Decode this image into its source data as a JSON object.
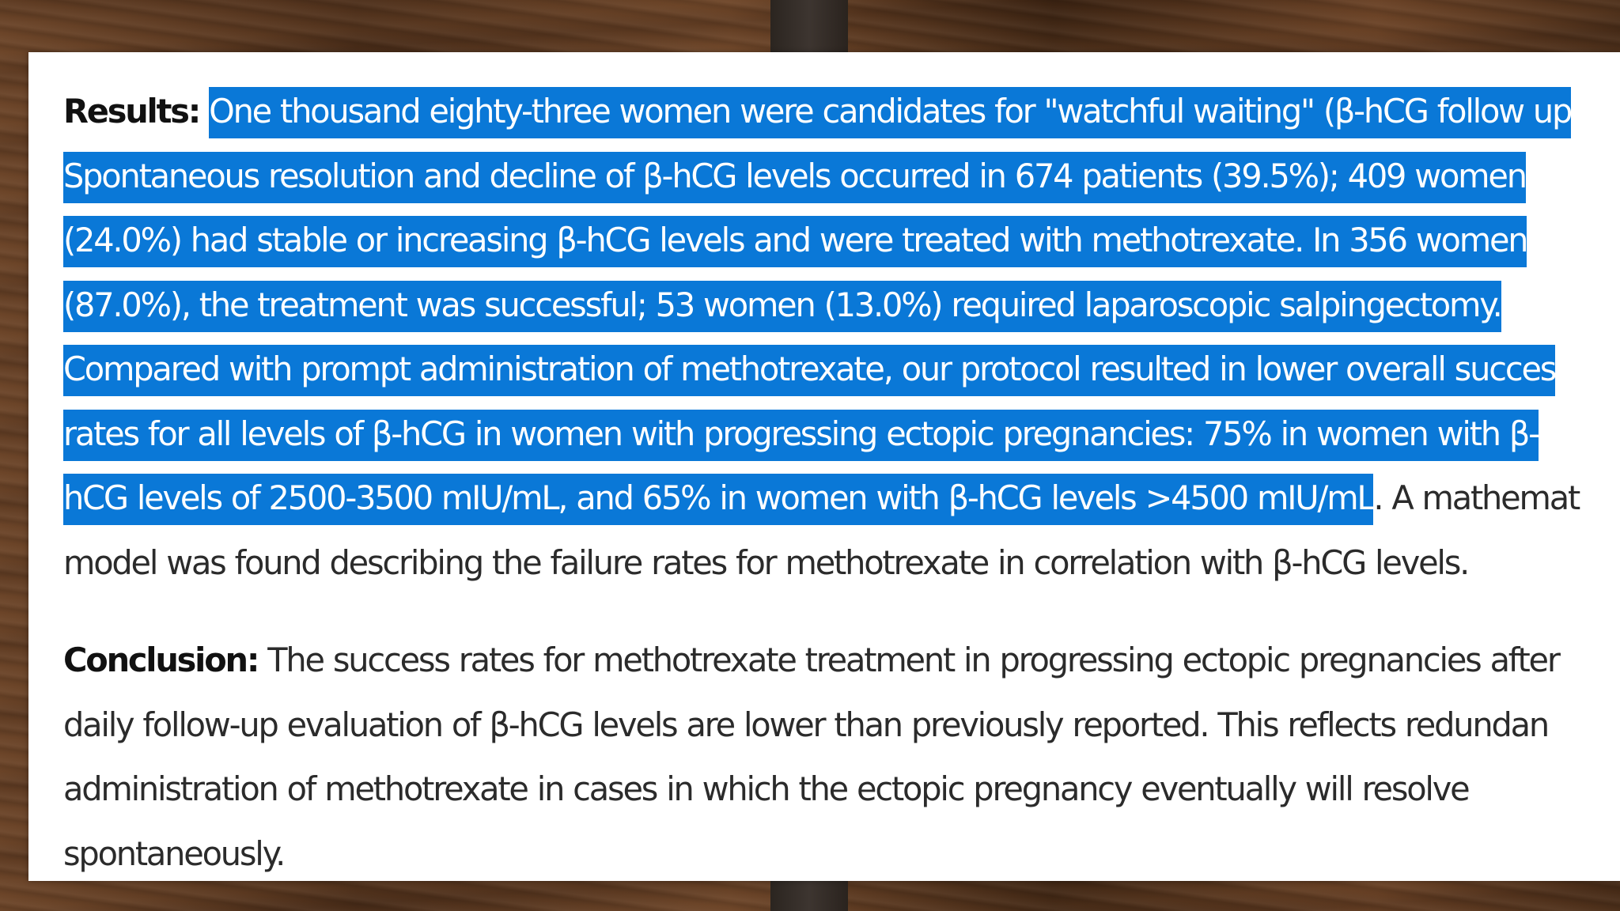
{
  "results": {
    "label": "Results:",
    "highlighted_lines": [
      "One thousand eighty-three women were candidates for \"watchful waiting\" (β-hCG follow up",
      "Spontaneous resolution and decline of β-hCG levels occurred in 674 patients (39.5%); 409 women",
      "(24.0%) had stable or increasing β-hCG levels and were treated with methotrexate. In 356 women",
      "(87.0%), the treatment was successful; 53 women (13.0%) required laparoscopic salpingectomy.",
      "Compared with prompt administration of methotrexate, our protocol resulted in lower overall succes",
      "rates for all levels of β-hCG in women with progressing ectopic pregnancies: 75% in women with β-",
      "hCG levels of 2500-3500 mIU/mL, and 65% in women with β-hCG levels >4500 mIU/mL"
    ],
    "tail_line_7": ". A mathemat",
    "line_8": "model was found describing the failure rates for methotrexate in correlation with β-hCG levels."
  },
  "conclusion": {
    "label": "Conclusion:",
    "lines": [
      "The success rates for methotrexate treatment in progressing ectopic pregnancies after",
      "daily follow-up evaluation of β-hCG levels are lower than previously reported. This reflects redundan",
      "administration of methotrexate in cases in which the ectopic pregnancy eventually will resolve",
      "spontaneously."
    ]
  },
  "colors": {
    "selection_highlight": "#0a78d7",
    "selection_text": "#ffffff",
    "body_text": "#2b2b2b",
    "page_background": "#ffffff"
  }
}
